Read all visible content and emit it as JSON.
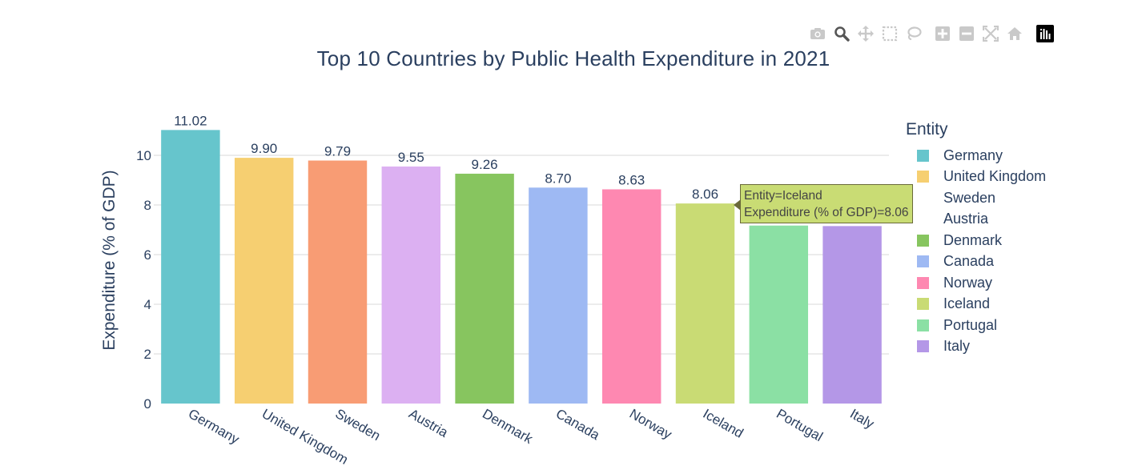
{
  "chart_data": {
    "type": "bar",
    "title": "Top 10 Countries by Public Health Expenditure in 2021",
    "xlabel": "",
    "ylabel": "Expenditure (% of GDP)",
    "ylim": [
      0,
      11.3
    ],
    "yticks": [
      "0",
      "2",
      "4",
      "6",
      "8",
      "10"
    ],
    "grid": true,
    "legend_title": "Entity",
    "legend_position": "right",
    "categories": [
      "Germany",
      "United Kingdom",
      "Sweden",
      "Austria",
      "Denmark",
      "Canada",
      "Norway",
      "Iceland",
      "Portugal",
      "Italy"
    ],
    "values": [
      11.02,
      9.9,
      9.79,
      9.55,
      9.26,
      8.7,
      8.63,
      8.06,
      7.17,
      7.15
    ],
    "data_labels": [
      "11.02",
      "9.90",
      "9.79",
      "9.55",
      "9.26",
      "8.70",
      "8.63",
      "8.06",
      "",
      ""
    ],
    "colors": [
      "#66c5cc",
      "#f6cf71",
      "#f89c74",
      "#dcb0f2",
      "#87c55f",
      "#9eb9f3",
      "#fe88b1",
      "#c9db74",
      "#8be0a4",
      "#b497e7"
    ],
    "legend_entries": [
      "Germany",
      "United Kingdom",
      "Sweden",
      "Austria",
      "Denmark",
      "Canada",
      "Norway",
      "Iceland",
      "Portugal",
      "Italy"
    ],
    "legend_swatch_visible": [
      true,
      true,
      false,
      false,
      true,
      true,
      true,
      true,
      true,
      true
    ],
    "tooltip": {
      "line1": "Entity=Iceland",
      "line2": "Expenditure (% of GDP)=8.06"
    }
  },
  "modebar": {
    "buttons": [
      "camera-icon",
      "zoom-icon",
      "pan-icon",
      "box-select-icon",
      "lasso-icon",
      "zoom-in-icon",
      "zoom-out-icon",
      "autoscale-icon",
      "reset-axes-icon",
      "plotly-logo-icon"
    ]
  }
}
